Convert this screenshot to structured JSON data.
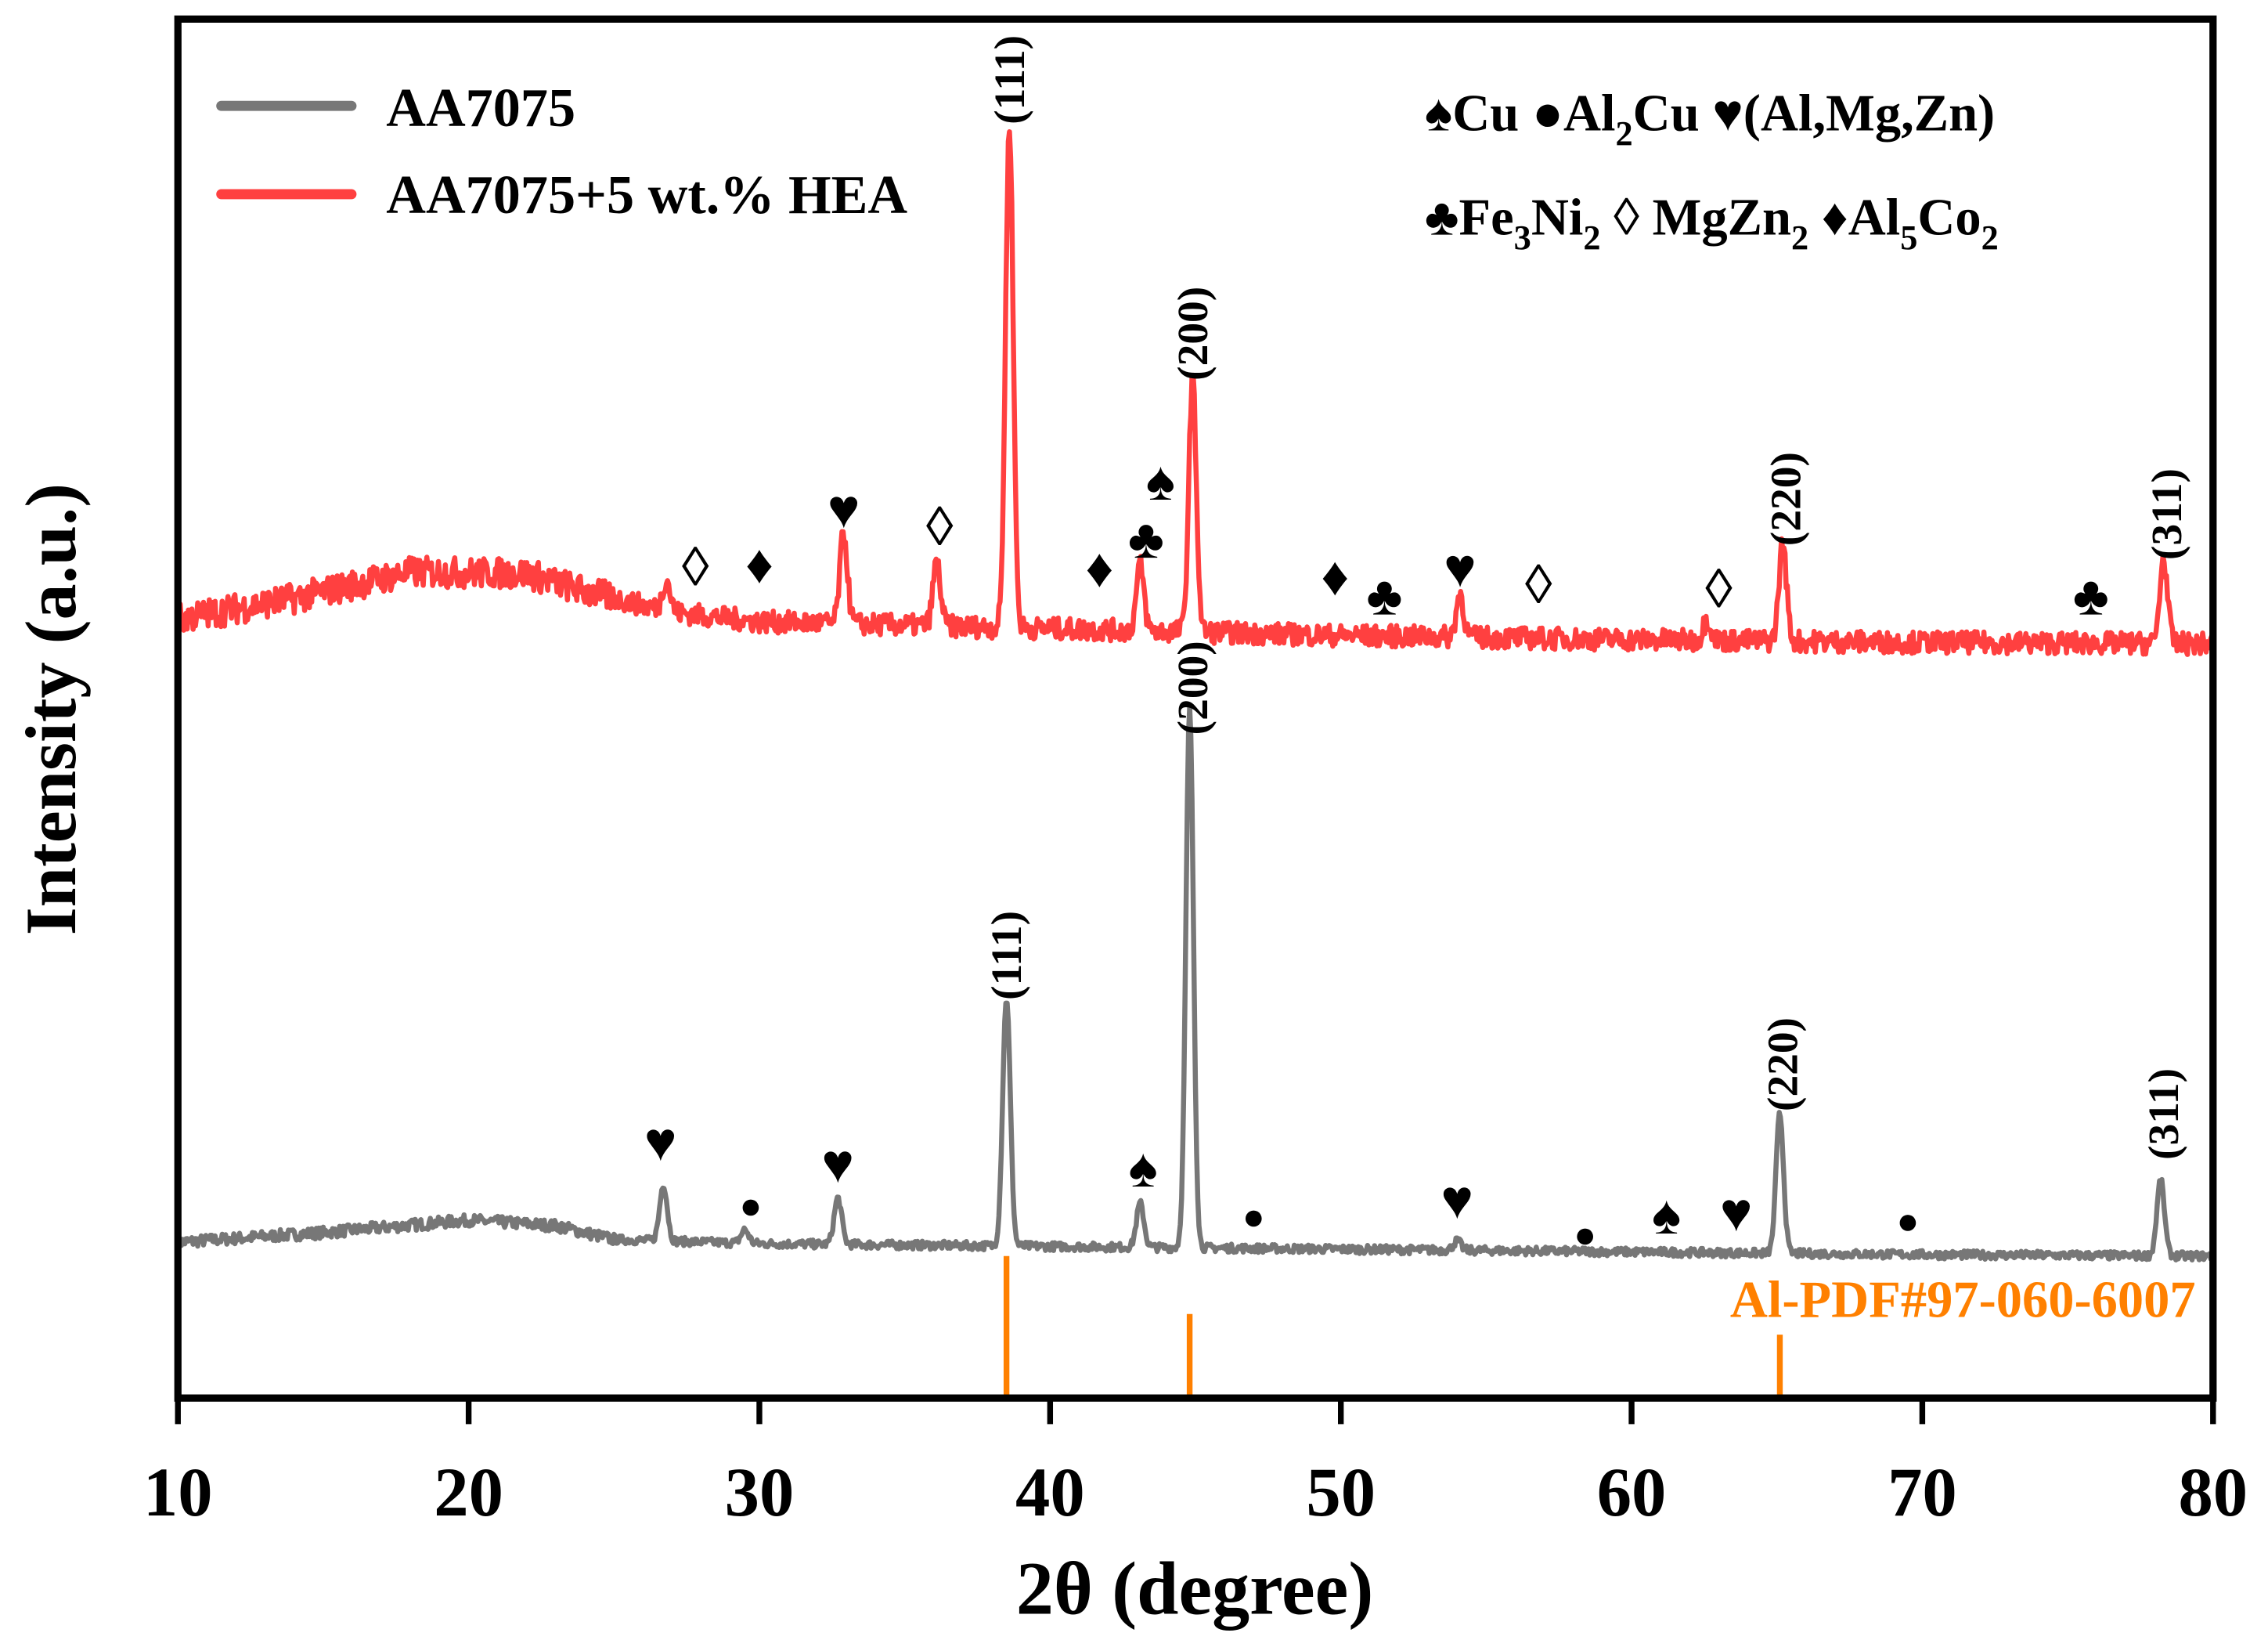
{
  "chart_data": {
    "type": "line",
    "xlabel": "2θ (degree)",
    "ylabel": "Intensity (a.u.)",
    "xlim": [
      10,
      80
    ],
    "ylim": [
      0,
      100
    ],
    "xticks": [
      "10",
      "20",
      "30",
      "40",
      "50",
      "60",
      "70",
      "80"
    ],
    "yticks": [],
    "grid": false,
    "legend_placement": "top-left",
    "series": [
      {
        "name": "AA7075",
        "color": "#777777",
        "baseline": [
          [
            10,
            11.3
          ],
          [
            15,
            12.0
          ],
          [
            20,
            12.9
          ],
          [
            23,
            12.5
          ],
          [
            25,
            11.5
          ],
          [
            30,
            11.2
          ],
          [
            40,
            11.0
          ],
          [
            50,
            10.8
          ],
          [
            60,
            10.6
          ],
          [
            70,
            10.4
          ],
          [
            80,
            10.3
          ]
        ],
        "peaks": [
          [
            26.7,
            15.5
          ],
          [
            29.5,
            12.2
          ],
          [
            32.7,
            14.5
          ],
          [
            38.5,
            29.0
          ],
          [
            43.1,
            14.1
          ],
          [
            44.8,
            49.9
          ],
          [
            54.0,
            11.4
          ],
          [
            65.1,
            20.6
          ],
          [
            78.2,
            15.8
          ]
        ],
        "hkl_labels": [
          {
            "text": "(111)",
            "x": 38.5,
            "y": 32.1
          },
          {
            "text": "(200)",
            "x": 44.9,
            "y": 51.5
          },
          {
            "text": "(220)",
            "x": 65.2,
            "y": 24.2
          },
          {
            "text": "(311)",
            "x": 78.3,
            "y": 20.6
          }
        ],
        "phase_markers": [
          {
            "symbol": "♥",
            "x": 26.6,
            "y": 18.5
          },
          {
            "symbol": "●",
            "x": 29.7,
            "y": 14.3
          },
          {
            "symbol": "♥",
            "x": 32.7,
            "y": 16.9
          },
          {
            "symbol": "♠",
            "x": 43.2,
            "y": 16.6
          },
          {
            "symbol": "●",
            "x": 47.0,
            "y": 13.5
          },
          {
            "symbol": "♥",
            "x": 54.0,
            "y": 14.3
          },
          {
            "symbol": "●",
            "x": 58.4,
            "y": 12.2
          },
          {
            "symbol": "♠",
            "x": 61.2,
            "y": 13.2
          },
          {
            "symbol": "♥",
            "x": 63.6,
            "y": 13.4
          },
          {
            "symbol": "●",
            "x": 69.5,
            "y": 13.2
          }
        ]
      },
      {
        "name": "AA7075+5 wt.% HEA",
        "color": "#ff4040",
        "baseline": [
          [
            10,
            56.5
          ],
          [
            14,
            58.0
          ],
          [
            18,
            59.9
          ],
          [
            22,
            59.8
          ],
          [
            24,
            58.5
          ],
          [
            27,
            57.0
          ],
          [
            30,
            56.3
          ],
          [
            40,
            55.8
          ],
          [
            50,
            55.3
          ],
          [
            60,
            55.0
          ],
          [
            70,
            54.8
          ],
          [
            80,
            54.7
          ]
        ],
        "peaks": [
          [
            26.8,
            59.4
          ],
          [
            32.9,
            62.7
          ],
          [
            36.1,
            60.6
          ],
          [
            38.6,
            92.4
          ],
          [
            43.1,
            60.4
          ],
          [
            44.9,
            73.9
          ],
          [
            54.1,
            58.3
          ],
          [
            62.6,
            56.5
          ],
          [
            65.2,
            62.0
          ],
          [
            78.3,
            60.9
          ]
        ],
        "hkl_labels": [
          {
            "text": "(111)",
            "x": 38.6,
            "y": 95.6
          },
          {
            "text": "(200)",
            "x": 44.9,
            "y": 77.2
          },
          {
            "text": "(220)",
            "x": 65.3,
            "y": 65.2
          },
          {
            "text": "(311)",
            "x": 78.4,
            "y": 64.1
          }
        ],
        "phase_markers": [
          {
            "symbol": "◊",
            "x": 27.8,
            "y": 60.2
          },
          {
            "symbol": "♦",
            "x": 30.0,
            "y": 60.4
          },
          {
            "symbol": "♥",
            "x": 32.9,
            "y": 64.4
          },
          {
            "symbol": "◊",
            "x": 36.2,
            "y": 63.1
          },
          {
            "symbol": "♦",
            "x": 41.7,
            "y": 60.1
          },
          {
            "symbol": "♣",
            "x": 43.3,
            "y": 62.2
          },
          {
            "symbol": "♠",
            "x": 43.8,
            "y": 66.4
          },
          {
            "symbol": "♦",
            "x": 49.8,
            "y": 59.5
          },
          {
            "symbol": "♣",
            "x": 51.5,
            "y": 58.1
          },
          {
            "symbol": "♥",
            "x": 54.1,
            "y": 60.1
          },
          {
            "symbol": "◊",
            "x": 56.8,
            "y": 58.9
          },
          {
            "symbol": "◊",
            "x": 63.0,
            "y": 58.6
          },
          {
            "symbol": "♣",
            "x": 75.8,
            "y": 58.1
          }
        ]
      }
    ],
    "reference": {
      "label": "Al-PDF#97-060-6007",
      "color": "#ff8000",
      "lines": [
        [
          38.5,
          10.3
        ],
        [
          44.8,
          6.1
        ],
        [
          65.1,
          4.6
        ]
      ]
    },
    "phase_legend": {
      "row1": [
        {
          "symbol": "♠",
          "name": "Cu",
          "sub": ""
        },
        {
          "symbol": "●",
          "name": "Al",
          "sub": "2",
          "tail": "Cu"
        },
        {
          "symbol": "♥",
          "name": "(Al,Mg,Zn)",
          "sub": ""
        }
      ],
      "row2": [
        {
          "symbol": "♣",
          "name": "Fe",
          "sub": "3",
          "tail": "Ni",
          "sub2": "2"
        },
        {
          "symbol": "◊",
          "name": "MgZn",
          "sub": "2"
        },
        {
          "symbol": "♦",
          "name": "Al",
          "sub": "5",
          "tail": "Co",
          "sub2": "2"
        }
      ]
    }
  }
}
